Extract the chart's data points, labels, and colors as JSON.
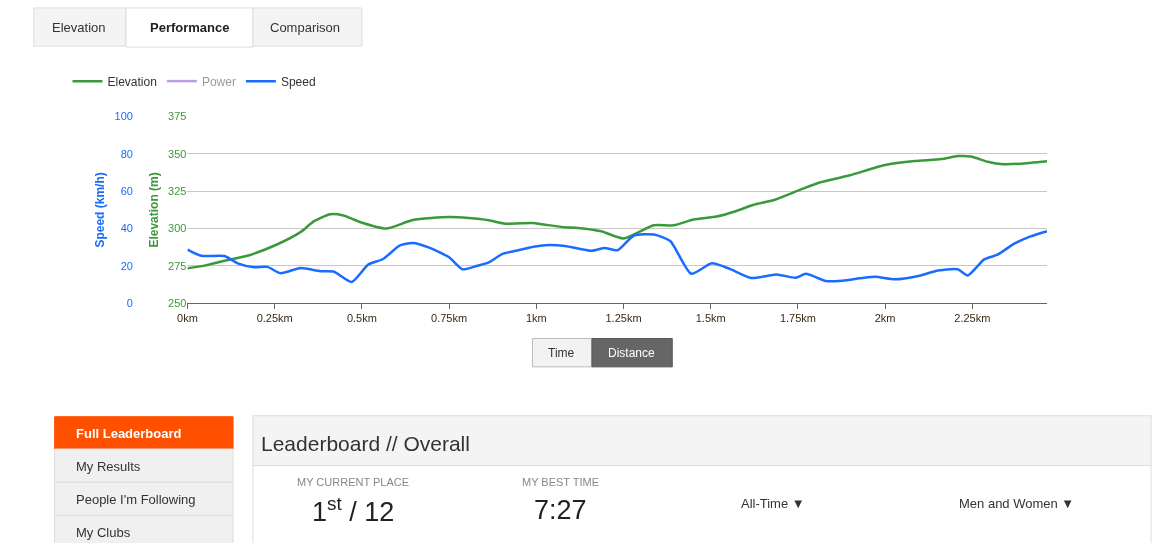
{
  "chart_data": {
    "type": "line",
    "xlabel": null,
    "ylabel": "Elevation (m)",
    "y2label": "Speed (km/h)",
    "xlim": [
      0,
      2.464
    ],
    "xticks": [
      {
        "value": 0,
        "label": "0km"
      },
      {
        "value": 0.25,
        "label": "0.25km"
      },
      {
        "value": 0.5,
        "label": "0.5km"
      },
      {
        "value": 0.75,
        "label": "0.75km"
      },
      {
        "value": 1,
        "label": "1km"
      },
      {
        "value": 1.25,
        "label": "1.25km"
      },
      {
        "value": 1.5,
        "label": "1.5km"
      },
      {
        "value": 1.75,
        "label": "1.75km"
      },
      {
        "value": 2,
        "label": "2km"
      },
      {
        "value": 2.25,
        "label": "2.25km"
      }
    ],
    "ylim": [
      250,
      375
    ],
    "yticks": [
      250,
      275,
      300,
      325,
      350,
      375
    ],
    "y2lim": [
      0,
      100
    ],
    "y2ticks": [
      0,
      20,
      40,
      60,
      80,
      100
    ],
    "grid": "y",
    "legend": "top left",
    "marker": "none",
    "line_style": "solid",
    "series": [
      {
        "name": "Elevation",
        "color": "#3a993a",
        "x": [
          0,
          0.049,
          0.106,
          0.172,
          0.258,
          0.324,
          0.362,
          0.409,
          0.447,
          0.494,
          0.57,
          0.646,
          0.75,
          0.807,
          0.864,
          0.911,
          0.987,
          1.025,
          1.081,
          1.119,
          1.186,
          1.25,
          1.337,
          1.394,
          1.451,
          1.517,
          1.574,
          1.621,
          1.686,
          1.754,
          1.81,
          1.896,
          2.0,
          2.085,
          2.161,
          2.208,
          2.246,
          2.294,
          2.331,
          2.388,
          2.464
        ],
        "values": [
          273.5,
          275.2,
          278.5,
          281.8,
          289.5,
          297.6,
          304.8,
          309.6,
          308.8,
          304.4,
          300,
          305.7,
          307.7,
          307,
          305.5,
          303.3,
          303.7,
          302.6,
          300.9,
          300.4,
          298.2,
          293.4,
          302.2,
          302.2,
          306.1,
          308.1,
          311.8,
          315.8,
          319.5,
          325.7,
          330.7,
          335.5,
          342.5,
          345.2,
          346.5,
          348.5,
          348.2,
          344.7,
          343.2,
          343.4,
          345
        ]
      },
      {
        "name": "Power",
        "color": "#7b3fcf"
      },
      {
        "name": "Speed",
        "color": "#1a6cff",
        "axis": "y2",
        "x": [
          0,
          0.04,
          0.106,
          0.144,
          0.191,
          0.229,
          0.267,
          0.324,
          0.381,
          0.419,
          0.471,
          0.518,
          0.561,
          0.608,
          0.646,
          0.693,
          0.75,
          0.788,
          0.826,
          0.864,
          0.902,
          0.949,
          0.996,
          1.025,
          1.082,
          1.158,
          1.196,
          1.233,
          1.28,
          1.337,
          1.384,
          1.444,
          1.503,
          1.555,
          1.616,
          1.688,
          1.744,
          1.773,
          1.83,
          1.877,
          1.934,
          1.972,
          2.029,
          2.095,
          2.152,
          2.208,
          2.237,
          2.284,
          2.322,
          2.37,
          2.417,
          2.464
        ],
        "values": [
          28.8,
          25.4,
          25.3,
          21.4,
          19.3,
          19.5,
          16.1,
          18.9,
          17.2,
          17,
          11.4,
          20.7,
          23.7,
          30.9,
          32.3,
          29.8,
          24.6,
          18.2,
          19.8,
          21.9,
          26.3,
          28.4,
          30.4,
          31.1,
          30.7,
          28.1,
          29.6,
          28.4,
          36.3,
          36.8,
          33.3,
          15.8,
          21.4,
          18.4,
          13.5,
          15.4,
          13.7,
          15.8,
          11.9,
          12.1,
          13.5,
          14.2,
          12.8,
          14.6,
          17.5,
          18.2,
          14.9,
          23.5,
          26,
          31.9,
          35.8,
          38.6
        ]
      }
    ],
    "title": "Leaderboard // Overall",
    "annotations": [
      "Elevation",
      "Performance",
      "Comparison",
      "Time",
      "Distance",
      "Full Leaderboard",
      "My Results",
      "People I'm Following",
      "My Clubs",
      "MY CURRENT PLACE",
      "1$^{st}$ / 12",
      "MY BEST TIME",
      "7:27",
      "All-Time ▼",
      "Men and Women ▼"
    ]
  }
}
